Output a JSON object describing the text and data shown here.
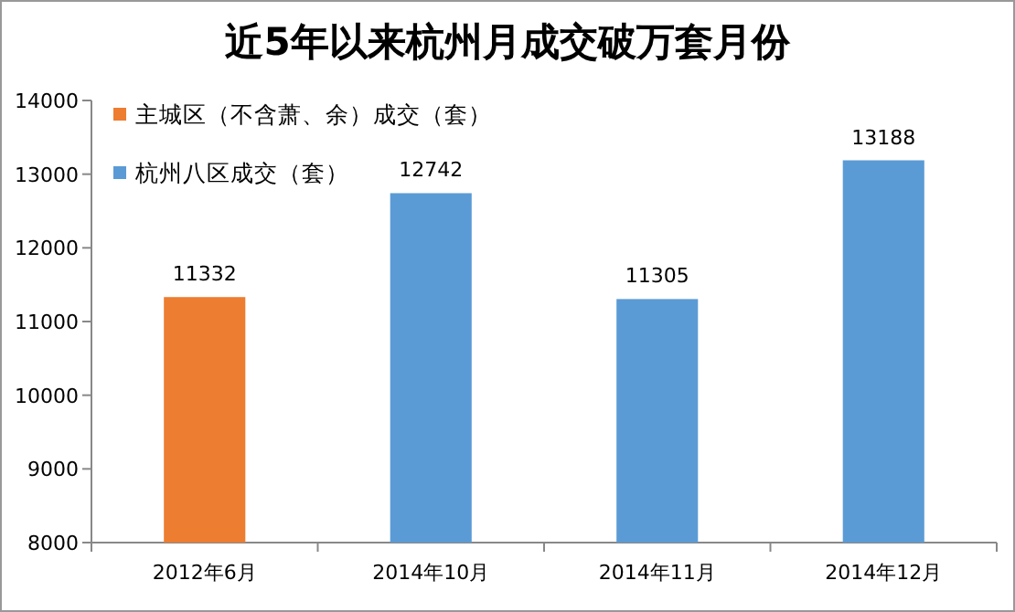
{
  "chart_data": {
    "type": "bar",
    "title": "近5年以来杭州月成交破万套月份",
    "categories": [
      "2012年6月",
      "2014年10月",
      "2014年11月",
      "2014年12月"
    ],
    "series": [
      {
        "name": "主城区（不含萧、余）成交（套）",
        "color": "#ed7d31",
        "values": [
          11332,
          null,
          null,
          null
        ]
      },
      {
        "name": "杭州八区成交（套）",
        "color": "#5b9bd5",
        "values": [
          null,
          12742,
          11305,
          13188
        ]
      }
    ],
    "stacked": true,
    "ylim": [
      8000,
      14000
    ],
    "yticks": [
      8000,
      9000,
      10000,
      11000,
      12000,
      13000,
      14000
    ],
    "data_labels": true,
    "legend": "top left",
    "grid": false
  }
}
